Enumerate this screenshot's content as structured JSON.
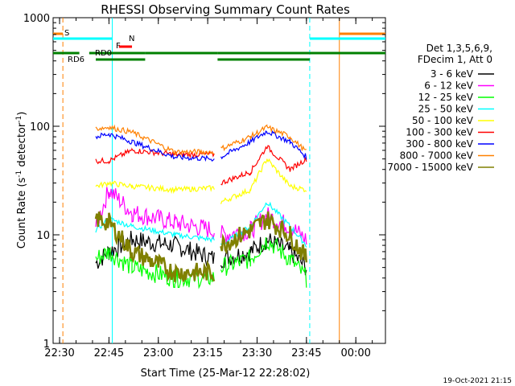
{
  "chart_data": {
    "type": "line",
    "title": "RHESSI Observing Summary Count Rates",
    "xlabel": "Start Time (25-Mar-12 22:28:02)",
    "ylabel_main": "Count Rate (s",
    "ylabel_sup1": "-1",
    "ylabel_mid": " detector",
    "ylabel_sup2": "-1",
    "ylabel_end": ")",
    "yscale": "log",
    "ylim": [
      1,
      1000
    ],
    "xlim": [
      "22:28:02",
      "00:09:00"
    ],
    "x_ticks": [
      "22:30",
      "22:45",
      "23:00",
      "23:15",
      "23:30",
      "23:45",
      "00:00"
    ],
    "y_ticks": [
      "1",
      "10",
      "100",
      "1000"
    ],
    "legend_header": [
      "Det 1,3,5,6,9,",
      "FDecim 1, Att 0"
    ],
    "legend_position": "right",
    "timestamp": "19-Oct-2021 21:15",
    "flag_labels": {
      "saa": "S",
      "night": "N",
      "flare": "F",
      "rd0": "RD0",
      "rd6": "RD6"
    },
    "series": [
      {
        "name": "3 - 6 keV",
        "color": "#000000",
        "values": [
          null,
          5.5,
          7,
          9,
          8,
          6,
          null,
          6,
          7,
          9,
          7,
          5,
          null
        ]
      },
      {
        "name": "6 - 12 keV",
        "color": "#ff00ff",
        "values": [
          null,
          12,
          26,
          16,
          13,
          11,
          null,
          10,
          11,
          15,
          12,
          9,
          null
        ]
      },
      {
        "name": "12 - 25 keV",
        "color": "#00ff00",
        "values": [
          null,
          6,
          7,
          5,
          4,
          4,
          null,
          5,
          6,
          9,
          6,
          4,
          null
        ]
      },
      {
        "name": "25 - 50 keV",
        "color": "#00ffff",
        "values": [
          null,
          11,
          14,
          12,
          10,
          9,
          null,
          8,
          12,
          20,
          12,
          8,
          null
        ]
      },
      {
        "name": "50 - 100 keV",
        "color": "#ffff00",
        "values": [
          null,
          28,
          30,
          28,
          26,
          27,
          null,
          20,
          26,
          50,
          28,
          26,
          null
        ]
      },
      {
        "name": "100 - 300 keV",
        "color": "#ff0000",
        "values": [
          null,
          48,
          48,
          60,
          55,
          55,
          null,
          30,
          38,
          65,
          40,
          50,
          null
        ]
      },
      {
        "name": "300 - 800 keV",
        "color": "#0000ff",
        "values": [
          null,
          80,
          85,
          72,
          52,
          50,
          null,
          52,
          72,
          90,
          72,
          52,
          null
        ]
      },
      {
        "name": "800 - 7000 keV",
        "color": "#ff8000",
        "values": [
          null,
          95,
          98,
          88,
          58,
          58,
          null,
          62,
          80,
          98,
          80,
          58,
          null
        ]
      },
      {
        "name": "7000 - 15000 keV",
        "color": "#808000",
        "values": [
          null,
          14,
          13,
          7,
          4.5,
          4.5,
          null,
          8,
          11,
          14,
          10,
          6,
          null
        ]
      }
    ],
    "series_x": [
      "22:40",
      "22:41",
      "22:45",
      "22:52",
      "23:05",
      "23:17",
      "23:18",
      "23:19",
      "23:28",
      "23:33",
      "23:40",
      "23:45",
      "23:46"
    ],
    "flags": {
      "saa": [
        [
          "22:28",
          "22:31"
        ],
        [
          "23:55",
          "00:09"
        ]
      ],
      "night": [
        [
          "22:28",
          "22:46"
        ],
        [
          "23:46",
          "00:09"
        ]
      ],
      "flare": [
        [
          "22:48",
          "22:52"
        ]
      ],
      "decim_rd0": [
        [
          "22:28",
          "22:36"
        ],
        [
          "22:39",
          "22:56"
        ],
        [
          "22:56",
          "23:18"
        ],
        [
          "23:18",
          "23:46"
        ],
        [
          "23:46",
          "00:09"
        ]
      ]
    }
  }
}
